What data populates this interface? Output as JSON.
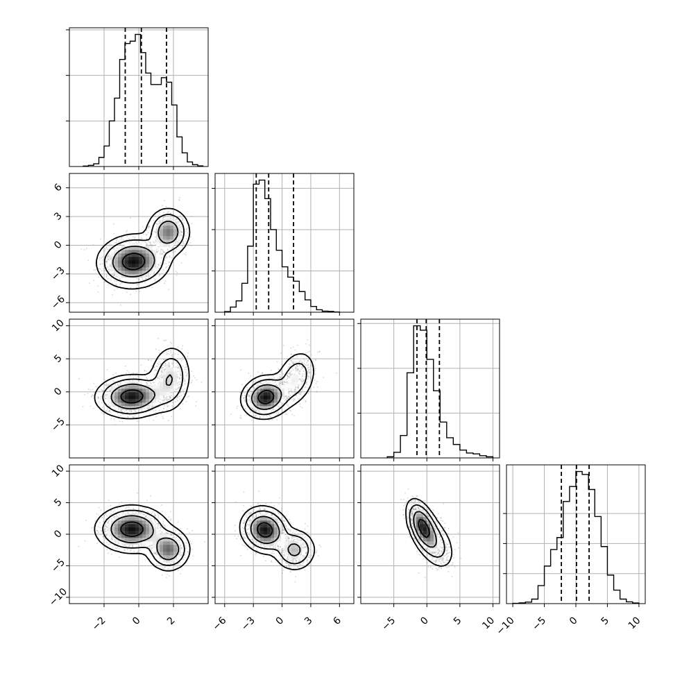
{
  "chart_data": {
    "type": "corner",
    "title": "",
    "grid": true,
    "n_params": 4,
    "params": [
      {
        "range": [
          -4,
          4
        ],
        "ticks": [
          -2,
          0,
          2
        ],
        "tick_labels": [
          "−2",
          "0",
          "2"
        ]
      },
      {
        "range": [
          -7,
          7.5
        ],
        "ticks": [
          -6,
          -3,
          0,
          3,
          6
        ],
        "tick_labels": [
          "−6",
          "−3",
          "0",
          "3",
          "6"
        ]
      },
      {
        "range": [
          -10,
          11
        ],
        "ticks": [
          -5,
          0,
          5,
          10
        ],
        "tick_labels": [
          "−5",
          "0",
          "5",
          "10"
        ]
      },
      {
        "range": [
          -11,
          11
        ],
        "ticks": [
          -10,
          -5,
          0,
          5,
          10
        ],
        "tick_labels": [
          "−10",
          "−5",
          "0",
          "5",
          "10"
        ]
      }
    ],
    "diagonal": [
      {
        "param": 0,
        "bin_edges": [
          -3.2,
          -2.9,
          -2.6,
          -2.3,
          -2.0,
          -1.7,
          -1.4,
          -1.1,
          -0.8,
          -0.5,
          -0.2,
          0.1,
          0.4,
          0.7,
          1.0,
          1.3,
          1.6,
          1.9,
          2.2,
          2.5,
          2.8,
          3.1,
          3.4,
          3.7
        ],
        "counts": [
          0.02,
          0.05,
          0.12,
          0.4,
          0.9,
          2.0,
          3.0,
          4.7,
          5.4,
          5.5,
          5.8,
          5.0,
          4.1,
          3.6,
          3.6,
          3.9,
          3.7,
          2.7,
          1.3,
          0.6,
          0.2,
          0.08,
          0.03
        ],
        "quantiles": [
          -0.78,
          0.15,
          1.6
        ],
        "yticks": [
          2,
          4,
          6
        ]
      },
      {
        "param": 1,
        "bin_edges": [
          -6,
          -5.4,
          -4.8,
          -4.2,
          -3.6,
          -3.0,
          -2.4,
          -1.8,
          -1.2,
          -0.6,
          0.0,
          0.6,
          1.2,
          1.8,
          2.4,
          3.0,
          3.6,
          4.2,
          4.8,
          5.4,
          6.0
        ],
        "counts": [
          0.03,
          0.25,
          0.55,
          1.4,
          3.2,
          6.2,
          6.4,
          5.5,
          4.0,
          3.0,
          2.2,
          1.7,
          1.5,
          1.0,
          0.6,
          0.28,
          0.12,
          0.05,
          0.04,
          0.01
        ],
        "quantiles": [
          -2.7,
          -1.4,
          1.2
        ],
        "yticks": [
          2,
          4,
          6
        ]
      },
      {
        "param": 2,
        "bin_edges": [
          -6,
          -5,
          -4,
          -3,
          -2,
          -1,
          0,
          1,
          2,
          3,
          4,
          5,
          6,
          7,
          8,
          9,
          10
        ],
        "counts": [
          0.05,
          0.25,
          1.0,
          3.8,
          5.9,
          5.7,
          4.4,
          3.0,
          1.6,
          0.9,
          0.6,
          0.35,
          0.22,
          0.18,
          0.1,
          0.05
        ],
        "quantiles": [
          -1.5,
          -0.1,
          1.9
        ],
        "yticks": [
          2,
          4,
          6
        ]
      },
      {
        "param": 3,
        "bin_edges": [
          -10,
          -9,
          -8,
          -7,
          -6,
          -5,
          -4,
          -3,
          -2,
          -1,
          0,
          1,
          2,
          3,
          4,
          5,
          6,
          7,
          8,
          9,
          10
        ],
        "counts": [
          0.02,
          0.05,
          0.1,
          0.3,
          1.2,
          2.5,
          3.6,
          4.4,
          6.8,
          7.8,
          8.8,
          8.6,
          7.6,
          5.8,
          3.8,
          1.9,
          0.9,
          0.3,
          0.12,
          0.04
        ],
        "quantiles": [
          -2.3,
          0.1,
          2.1
        ],
        "yticks": [
          2,
          4,
          6
        ]
      }
    ],
    "pairs": [
      {
        "row": 1,
        "col": 0,
        "modes": [
          {
            "mx": -0.3,
            "my": -1.7,
            "sx": 0.9,
            "sy": 1.2,
            "w": 0.72,
            "rho": 0.05
          },
          {
            "mx": 1.7,
            "my": 1.4,
            "sx": 0.55,
            "sy": 1.1,
            "w": 0.28,
            "rho": 0.0
          }
        ]
      },
      {
        "row": 2,
        "col": 0,
        "modes": [
          {
            "mx": -0.4,
            "my": -0.7,
            "sx": 0.9,
            "sy": 1.4,
            "w": 0.7,
            "rho": 0.05
          },
          {
            "mx": 1.8,
            "my": 2.0,
            "sx": 0.55,
            "sy": 2.3,
            "w": 0.3,
            "rho": 0.1
          }
        ]
      },
      {
        "row": 3,
        "col": 0,
        "modes": [
          {
            "mx": -0.4,
            "my": 0.8,
            "sx": 0.9,
            "sy": 1.6,
            "w": 0.7,
            "rho": 0.0
          },
          {
            "mx": 1.7,
            "my": -2.4,
            "sx": 0.55,
            "sy": 1.5,
            "w": 0.3,
            "rho": 0.0
          }
        ]
      },
      {
        "row": 2,
        "col": 1,
        "modes": [
          {
            "mx": -1.7,
            "my": -0.8,
            "sx": 1.1,
            "sy": 1.4,
            "w": 0.7,
            "rho": 0.1
          },
          {
            "mx": 1.4,
            "my": 2.0,
            "sx": 1.0,
            "sy": 2.0,
            "w": 0.3,
            "rho": 0.3
          }
        ]
      },
      {
        "row": 3,
        "col": 1,
        "modes": [
          {
            "mx": -1.8,
            "my": 0.7,
            "sx": 1.1,
            "sy": 1.6,
            "w": 0.7,
            "rho": -0.1
          },
          {
            "mx": 1.3,
            "my": -2.5,
            "sx": 1.0,
            "sy": 1.5,
            "w": 0.3,
            "rho": 0.0
          }
        ]
      },
      {
        "row": 3,
        "col": 2,
        "modes": [
          {
            "mx": -0.6,
            "my": 1.2,
            "sx": 1.1,
            "sy": 1.9,
            "w": 0.7,
            "rho": -0.5
          },
          {
            "mx": 1.3,
            "my": -1.5,
            "sx": 1.4,
            "sy": 2.0,
            "w": 0.3,
            "rho": -0.4
          }
        ]
      }
    ]
  }
}
